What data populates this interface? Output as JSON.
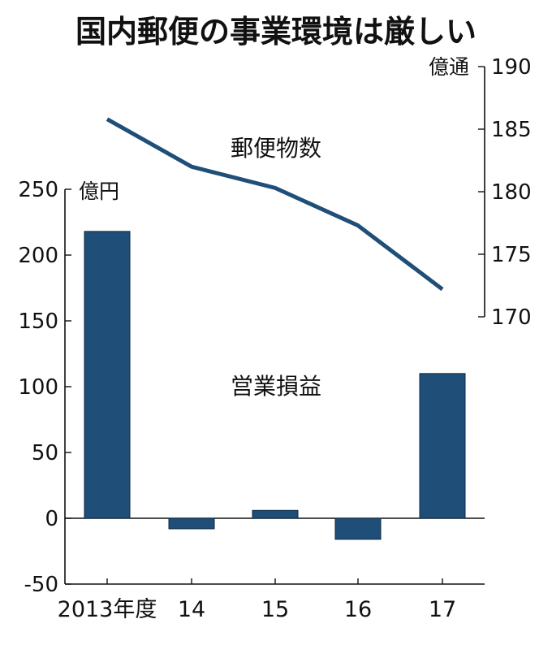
{
  "chart_data": {
    "title": "国内郵便の事業環境は厳しい",
    "categories": [
      "2013年度",
      "14",
      "15",
      "16",
      "17"
    ],
    "grid": false,
    "bar": {
      "type": "bar",
      "label": "営業損益",
      "unit": "億円",
      "values": [
        218,
        -8,
        6,
        -16,
        110
      ],
      "ylim": [
        -50,
        250
      ],
      "ticks": [
        "250",
        "200",
        "150",
        "100",
        "50",
        "0",
        "-50"
      ],
      "axis": "left"
    },
    "line": {
      "type": "line",
      "label": "郵便物数",
      "unit": "億通",
      "values": [
        185.8,
        182.0,
        180.3,
        177.3,
        172.2
      ],
      "ylim": [
        170,
        190
      ],
      "ticks": [
        "190",
        "185",
        "180",
        "175",
        "170"
      ],
      "axis": "right"
    },
    "colors": {
      "bar": "#1f4e79",
      "line": "#1f4e79",
      "axis": "#111111"
    }
  }
}
